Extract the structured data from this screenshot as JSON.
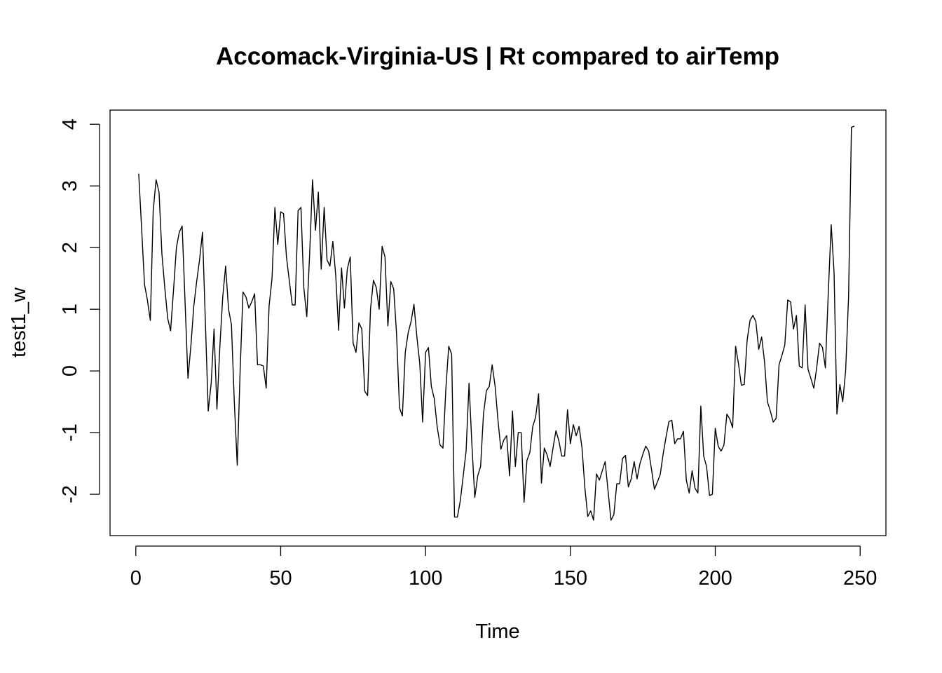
{
  "chart_data": {
    "type": "line",
    "title": "Accomack-Virginia-US | Rt compared to airTemp",
    "xlabel": "Time",
    "ylabel": "test1_w",
    "xlim": [
      -8.9,
      258.9
    ],
    "ylim": [
      -2.67,
      4.23
    ],
    "x_ticks": [
      0,
      50,
      100,
      150,
      200,
      250
    ],
    "y_ticks": [
      -2,
      -1,
      0,
      1,
      2,
      3,
      4
    ],
    "grid": false,
    "legend": "none",
    "line_color": "#000000",
    "series": [
      {
        "x_start": 1,
        "x_step": 1,
        "values": [
          3.2,
          2.3,
          1.4,
          1.15,
          0.82,
          2.6,
          3.1,
          2.9,
          1.9,
          1.35,
          0.85,
          0.65,
          1.3,
          2.0,
          2.25,
          2.35,
          1.1,
          -0.12,
          0.4,
          1.05,
          1.45,
          1.8,
          2.25,
          0.8,
          -0.65,
          -0.2,
          0.68,
          -0.62,
          0.4,
          1.2,
          1.7,
          1.0,
          0.75,
          -0.5,
          -1.53,
          0.0,
          1.28,
          1.2,
          1.02,
          1.12,
          1.25,
          0.1,
          0.1,
          0.08,
          -0.28,
          1.05,
          1.5,
          2.65,
          2.05,
          2.58,
          2.55,
          1.85,
          1.45,
          1.07,
          1.07,
          2.6,
          2.65,
          1.35,
          0.88,
          1.9,
          3.1,
          2.28,
          2.9,
          1.65,
          2.65,
          1.8,
          1.7,
          2.1,
          1.55,
          0.66,
          1.67,
          1.02,
          1.65,
          1.85,
          0.45,
          0.3,
          0.78,
          0.68,
          -0.33,
          -0.4,
          1.0,
          1.47,
          1.35,
          1.0,
          2.02,
          1.85,
          0.73,
          1.45,
          1.33,
          0.6,
          -0.6,
          -0.73,
          0.3,
          0.62,
          0.8,
          1.08,
          0.55,
          0.12,
          -0.83,
          0.3,
          0.38,
          -0.25,
          -0.45,
          -0.9,
          -1.2,
          -1.25,
          -0.3,
          0.4,
          0.27,
          -2.37,
          -2.37,
          -2.1,
          -1.7,
          -1.3,
          -0.2,
          -1.2,
          -2.05,
          -1.7,
          -1.55,
          -0.7,
          -0.32,
          -0.25,
          0.1,
          -0.25,
          -0.8,
          -1.27,
          -1.12,
          -1.05,
          -1.7,
          -0.65,
          -1.55,
          -1.0,
          -1.0,
          -2.13,
          -1.45,
          -1.32,
          -0.9,
          -0.75,
          -0.37,
          -1.82,
          -1.25,
          -1.37,
          -1.55,
          -1.25,
          -0.97,
          -1.13,
          -1.38,
          -1.38,
          -0.63,
          -1.18,
          -0.87,
          -1.05,
          -0.9,
          -1.25,
          -1.9,
          -2.36,
          -2.27,
          -2.42,
          -1.67,
          -1.77,
          -1.62,
          -1.47,
          -1.95,
          -2.42,
          -2.33,
          -1.83,
          -1.83,
          -1.42,
          -1.37,
          -1.88,
          -1.75,
          -1.47,
          -1.75,
          -1.5,
          -1.35,
          -1.22,
          -1.3,
          -1.6,
          -1.92,
          -1.8,
          -1.68,
          -1.35,
          -1.07,
          -0.82,
          -0.8,
          -1.18,
          -1.1,
          -1.1,
          -0.98,
          -1.77,
          -1.98,
          -1.62,
          -1.9,
          -1.98,
          -0.57,
          -1.38,
          -1.55,
          -2.02,
          -2.0,
          -0.93,
          -1.22,
          -1.3,
          -1.2,
          -0.7,
          -0.78,
          -0.92,
          0.4,
          0.12,
          -0.23,
          -0.22,
          0.5,
          0.82,
          0.9,
          0.8,
          0.35,
          0.55,
          0.15,
          -0.5,
          -0.65,
          -0.83,
          -0.77,
          0.1,
          0.25,
          0.42,
          1.15,
          1.12,
          0.68,
          0.9,
          0.08,
          0.05,
          1.07,
          0.03,
          -0.12,
          -0.28,
          0.05,
          0.45,
          0.38,
          0.05,
          1.25,
          2.37,
          1.6,
          -0.7,
          -0.22,
          -0.5,
          0.0,
          1.2,
          3.95,
          3.97
        ]
      }
    ]
  }
}
